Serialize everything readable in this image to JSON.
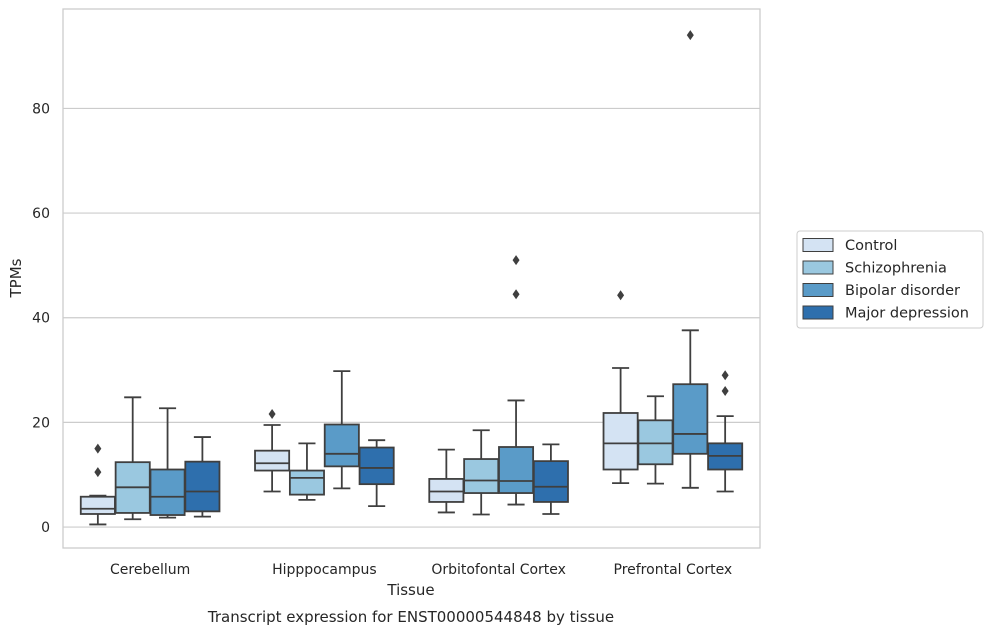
{
  "chart_data": {
    "type": "box",
    "title": "Transcript expression for ENST00000544848 by tissue",
    "xlabel": "Tissue",
    "ylabel": "TPMs",
    "ylim": [
      -4,
      99
    ],
    "yticks": [
      0,
      20,
      40,
      60,
      80
    ],
    "grid": "horizontal",
    "legend_position": "right",
    "categories": [
      "Cerebellum",
      "Hipppocampus",
      "Orbitofontal Cortex",
      "Prefrontal Cortex"
    ],
    "series": [
      {
        "name": "Control",
        "color": "#d4e3f3",
        "boxes": [
          {
            "whislo": 0.5,
            "q1": 2.5,
            "med": 3.5,
            "q3": 5.8,
            "whishi": 6.0,
            "fliers": [
              10.5,
              15.0
            ]
          },
          {
            "whislo": 6.8,
            "q1": 10.8,
            "med": 12.2,
            "q3": 14.6,
            "whishi": 19.5,
            "fliers": [
              21.6
            ]
          },
          {
            "whislo": 2.8,
            "q1": 4.8,
            "med": 6.8,
            "q3": 9.2,
            "whishi": 14.8,
            "fliers": []
          },
          {
            "whislo": 8.4,
            "q1": 11.0,
            "med": 16.0,
            "q3": 21.8,
            "whishi": 30.4,
            "fliers": [
              44.3
            ]
          }
        ]
      },
      {
        "name": "Schizophrenia",
        "color": "#9ac8e0",
        "boxes": [
          {
            "whislo": 1.5,
            "q1": 2.7,
            "med": 7.6,
            "q3": 12.4,
            "whishi": 24.8,
            "fliers": []
          },
          {
            "whislo": 5.2,
            "q1": 6.2,
            "med": 9.4,
            "q3": 10.8,
            "whishi": 16.0,
            "fliers": []
          },
          {
            "whislo": 2.4,
            "q1": 6.5,
            "med": 8.9,
            "q3": 13.0,
            "whishi": 18.5,
            "fliers": []
          },
          {
            "whislo": 8.3,
            "q1": 12.0,
            "med": 16.0,
            "q3": 20.4,
            "whishi": 25.0,
            "fliers": []
          }
        ]
      },
      {
        "name": "Bipolar disorder",
        "color": "#5a9bc8",
        "boxes": [
          {
            "whislo": 1.8,
            "q1": 2.3,
            "med": 5.8,
            "q3": 11.0,
            "whishi": 22.7,
            "fliers": []
          },
          {
            "whislo": 7.4,
            "q1": 11.6,
            "med": 14.0,
            "q3": 19.6,
            "whishi": 29.8,
            "fliers": []
          },
          {
            "whislo": 4.3,
            "q1": 6.5,
            "med": 8.8,
            "q3": 15.3,
            "whishi": 24.2,
            "fliers": [
              44.5,
              51.0
            ]
          },
          {
            "whislo": 7.5,
            "q1": 14.0,
            "med": 17.8,
            "q3": 27.3,
            "whishi": 37.6,
            "fliers": [
              94.0
            ]
          }
        ]
      },
      {
        "name": "Major depression",
        "color": "#2e6fad",
        "boxes": [
          {
            "whislo": 2.0,
            "q1": 3.0,
            "med": 6.8,
            "q3": 12.5,
            "whishi": 17.2,
            "fliers": []
          },
          {
            "whislo": 4.0,
            "q1": 8.2,
            "med": 11.3,
            "q3": 15.2,
            "whishi": 16.6,
            "fliers": []
          },
          {
            "whislo": 2.5,
            "q1": 4.8,
            "med": 7.7,
            "q3": 12.6,
            "whishi": 15.8,
            "fliers": []
          },
          {
            "whislo": 6.8,
            "q1": 11.0,
            "med": 13.6,
            "q3": 16.0,
            "whishi": 21.2,
            "fliers": [
              26.0,
              29.0
            ]
          }
        ]
      }
    ]
  }
}
